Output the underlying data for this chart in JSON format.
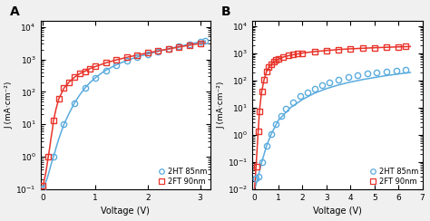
{
  "panel_A": {
    "label": "A",
    "xlim": [
      -0.05,
      3.2
    ],
    "ylim": [
      0.1,
      15000
    ],
    "xticks": [
      0,
      1,
      2,
      3
    ],
    "xlabel": "Voltage (V)",
    "ylabel": "J (mA·cm⁻²)",
    "blue_line_x": [
      0.0,
      0.02,
      0.05,
      0.08,
      0.1,
      0.13,
      0.15,
      0.18,
      0.2,
      0.25,
      0.3,
      0.35,
      0.4,
      0.5,
      0.6,
      0.7,
      0.8,
      0.9,
      1.0,
      1.1,
      1.2,
      1.4,
      1.6,
      1.8,
      2.0,
      2.2,
      2.5,
      2.8,
      3.1
    ],
    "blue_line_y": [
      0.11,
      0.13,
      0.16,
      0.22,
      0.28,
      0.42,
      0.55,
      0.8,
      1.0,
      1.9,
      3.5,
      6,
      10,
      22,
      45,
      80,
      130,
      195,
      270,
      360,
      460,
      680,
      920,
      1180,
      1460,
      1760,
      2300,
      2950,
      3700
    ],
    "blue_marker_x": [
      0.0,
      0.2,
      0.4,
      0.6,
      0.8,
      1.0,
      1.2,
      1.4,
      1.6,
      1.8,
      2.0,
      2.2,
      2.4,
      2.6,
      2.8,
      3.0,
      3.1
    ],
    "blue_marker_y": [
      0.11,
      1.0,
      10,
      45,
      130,
      270,
      460,
      680,
      920,
      1180,
      1460,
      1760,
      2100,
      2500,
      2950,
      3400,
      3700
    ],
    "red_line_x": [
      0.0,
      0.02,
      0.05,
      0.08,
      0.1,
      0.13,
      0.15,
      0.18,
      0.2,
      0.25,
      0.3,
      0.4,
      0.5,
      0.6,
      0.7,
      0.8,
      0.9,
      1.0,
      1.2,
      1.4,
      1.6,
      1.8,
      2.0,
      2.3,
      2.6,
      2.9,
      3.1
    ],
    "red_line_y": [
      0.13,
      0.18,
      0.3,
      0.6,
      1.0,
      2.0,
      3.5,
      7,
      13,
      30,
      60,
      130,
      200,
      280,
      360,
      430,
      520,
      600,
      780,
      960,
      1150,
      1360,
      1580,
      1950,
      2400,
      2900,
      3250
    ],
    "red_marker_x": [
      0.0,
      0.1,
      0.2,
      0.3,
      0.4,
      0.5,
      0.6,
      0.7,
      0.8,
      0.9,
      1.0,
      1.2,
      1.4,
      1.6,
      1.8,
      2.0,
      2.2,
      2.4,
      2.6,
      2.8,
      3.0
    ],
    "red_marker_y": [
      0.13,
      1.0,
      13,
      60,
      130,
      200,
      280,
      360,
      430,
      520,
      600,
      780,
      960,
      1150,
      1360,
      1580,
      1820,
      2100,
      2400,
      2750,
      3100
    ]
  },
  "panel_B": {
    "label": "B",
    "xlim": [
      -0.1,
      7
    ],
    "ylim": [
      0.01,
      15000
    ],
    "xticks": [
      0,
      1,
      2,
      3,
      4,
      5,
      6,
      7
    ],
    "xlabel": "Voltage (V)",
    "ylabel": "J (mA·cm⁻²)",
    "blue_line_x": [
      0.0,
      0.05,
      0.1,
      0.15,
      0.2,
      0.3,
      0.4,
      0.5,
      0.7,
      1.0,
      1.5,
      2.0,
      2.5,
      3.0,
      3.5,
      4.0,
      4.5,
      5.0,
      5.5,
      6.0,
      6.5
    ],
    "blue_line_y": [
      0.011,
      0.014,
      0.02,
      0.03,
      0.045,
      0.1,
      0.2,
      0.4,
      1.1,
      3.5,
      10,
      20,
      34,
      50,
      68,
      87,
      107,
      127,
      150,
      172,
      196
    ],
    "blue_marker_x": [
      0.05,
      0.15,
      0.3,
      0.5,
      0.7,
      0.9,
      1.1,
      1.3,
      1.6,
      1.9,
      2.2,
      2.5,
      2.8,
      3.1,
      3.5,
      3.9,
      4.3,
      4.7,
      5.1,
      5.5,
      5.9,
      6.3
    ],
    "blue_marker_y": [
      0.025,
      0.03,
      0.1,
      0.4,
      1.1,
      2.5,
      5,
      9,
      16,
      26,
      37,
      50,
      65,
      82,
      105,
      130,
      155,
      177,
      197,
      215,
      232,
      248
    ],
    "red_line_x": [
      0.0,
      0.03,
      0.06,
      0.09,
      0.12,
      0.15,
      0.18,
      0.2,
      0.25,
      0.3,
      0.4,
      0.5,
      0.6,
      0.7,
      0.8,
      1.0,
      1.2,
      1.5,
      2.0,
      2.5,
      3.0,
      3.5,
      4.0,
      4.5,
      5.0,
      5.5,
      6.0,
      6.5
    ],
    "red_line_y": [
      0.011,
      0.025,
      0.07,
      0.18,
      0.5,
      1.3,
      3.5,
      7,
      18,
      40,
      110,
      210,
      310,
      400,
      480,
      610,
      720,
      840,
      1010,
      1140,
      1250,
      1360,
      1440,
      1510,
      1580,
      1640,
      1700,
      1750
    ],
    "red_marker_x": [
      0.1,
      0.15,
      0.2,
      0.3,
      0.4,
      0.5,
      0.6,
      0.7,
      0.8,
      0.9,
      1.0,
      1.2,
      1.4,
      1.6,
      1.8,
      2.0,
      2.5,
      3.0,
      3.5,
      4.0,
      4.5,
      5.0,
      5.5,
      6.0,
      6.3
    ],
    "red_marker_y": [
      0.07,
      1.3,
      7,
      40,
      110,
      210,
      310,
      400,
      480,
      550,
      610,
      720,
      810,
      880,
      950,
      1010,
      1140,
      1250,
      1360,
      1440,
      1510,
      1580,
      1640,
      1700,
      1740
    ]
  },
  "blue_color": "#5aabde",
  "red_color": "#e8342a",
  "legend_2HT": "2HT 85nm",
  "legend_2FT": "2FT 90nm",
  "bg_color": "#f0f0f0",
  "plot_bg": "#ffffff",
  "marker_size": 4.5,
  "line_width": 1.1,
  "figsize": [
    4.74,
    2.44
  ],
  "dpi": 100
}
